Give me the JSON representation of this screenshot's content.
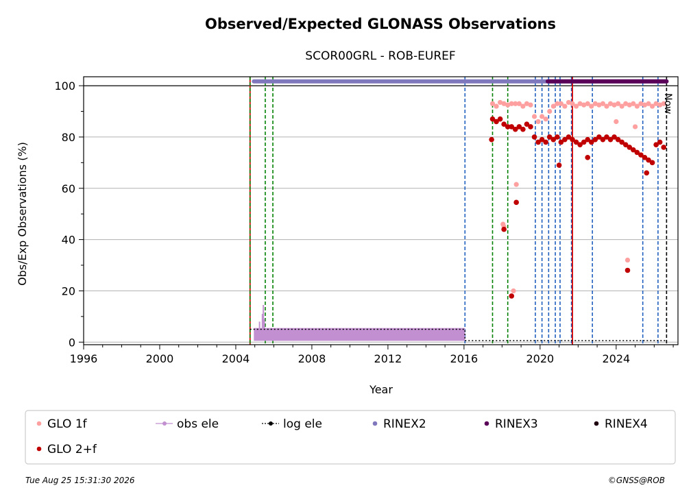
{
  "chart_data": {
    "type": "scatter",
    "title": "Observed/Expected GLONASS Observations",
    "subtitle": "SCOR00GRL - ROB-EUREF",
    "xlabel": "Year",
    "ylabel": "Obs/Exp Observations (%)",
    "xlim": [
      1996.0,
      2027.25
    ],
    "ylim": [
      -1.0,
      103.5
    ],
    "x_ticks": [
      1996,
      2000,
      2004,
      2008,
      2012,
      2016,
      2020,
      2024
    ],
    "y_ticks": [
      0,
      20,
      40,
      60,
      80,
      100
    ],
    "grid": "y",
    "now_label": "Now",
    "now_x": 2026.65,
    "reference_line_y": 100,
    "legend_position": "bottom",
    "legend": [
      {
        "label": "GLO 1f",
        "color": "#ffa0a0",
        "marker": "dot"
      },
      {
        "label": "obs ele",
        "color": "#c28fd0",
        "marker": "dot-line"
      },
      {
        "label": "log ele",
        "color": "#000000",
        "marker": "dot-dotted"
      },
      {
        "label": "RINEX2",
        "color": "#8078bc",
        "marker": "dot"
      },
      {
        "label": "RINEX3",
        "color": "#5a0058",
        "marker": "dot"
      },
      {
        "label": "RINEX4",
        "color": "#1e0010",
        "marker": "dot"
      },
      {
        "label": "GLO 2+f",
        "color": "#c00000",
        "marker": "dot"
      }
    ],
    "event_lines": {
      "red_solid": [
        2004.75,
        2021.7
      ],
      "green_dashed": [
        2004.75,
        2005.55,
        2005.95,
        2017.5,
        2018.3
      ],
      "blue_dashed": [
        2016.05,
        2019.75,
        2020.1,
        2020.45,
        2020.8,
        2021.05,
        2021.65,
        2022.75,
        2025.4,
        2026.2
      ],
      "black_dashed": [
        2026.65
      ]
    },
    "rinex_bars": [
      {
        "name": "RINEX2",
        "x_start": 2004.95,
        "x_end": 2026.65,
        "y": 101.7
      },
      {
        "name": "RINEX3",
        "x_start": 2020.4,
        "x_end": 2026.65,
        "y": 101.7
      }
    ],
    "log_ele": [
      [
        2004.75,
        5
      ],
      [
        2016.05,
        5
      ],
      [
        2016.05,
        0.6
      ],
      [
        2026.65,
        0.6
      ]
    ],
    "obs_ele": {
      "x_start": 2004.95,
      "x_end": 2016.05,
      "y_min": 0.5,
      "y_max": 5.5,
      "spikes": [
        [
          2005.25,
          8
        ],
        [
          2005.4,
          11
        ],
        [
          2005.45,
          14.5
        ],
        [
          2005.5,
          9
        ]
      ]
    },
    "series": [
      {
        "name": "GLO 1f",
        "points": [
          [
            2017.5,
            93
          ],
          [
            2017.7,
            92
          ],
          [
            2017.9,
            93.5
          ],
          [
            2018.1,
            93
          ],
          [
            2018.3,
            92.5
          ],
          [
            2018.5,
            93
          ],
          [
            2018.7,
            93
          ],
          [
            2018.9,
            93
          ],
          [
            2019.1,
            92
          ],
          [
            2019.3,
            93
          ],
          [
            2019.5,
            92.5
          ],
          [
            2019.7,
            88
          ],
          [
            2019.9,
            86
          ],
          [
            2020.1,
            88
          ],
          [
            2020.3,
            87
          ],
          [
            2020.5,
            90
          ],
          [
            2020.7,
            92
          ],
          [
            2020.9,
            93
          ],
          [
            2021.1,
            93
          ],
          [
            2021.3,
            92
          ],
          [
            2021.5,
            93.5
          ],
          [
            2021.7,
            93
          ],
          [
            2021.9,
            92
          ],
          [
            2022.1,
            93
          ],
          [
            2022.3,
            92.5
          ],
          [
            2022.5,
            93
          ],
          [
            2022.7,
            92
          ],
          [
            2022.9,
            93
          ],
          [
            2023.1,
            92.5
          ],
          [
            2023.3,
            93
          ],
          [
            2023.5,
            92
          ],
          [
            2023.7,
            93
          ],
          [
            2023.9,
            92.5
          ],
          [
            2024.1,
            93
          ],
          [
            2024.3,
            92
          ],
          [
            2024.5,
            93
          ],
          [
            2024.7,
            92.5
          ],
          [
            2024.9,
            93
          ],
          [
            2025.1,
            92
          ],
          [
            2025.3,
            93
          ],
          [
            2025.5,
            92.5
          ],
          [
            2025.7,
            93
          ],
          [
            2025.9,
            92
          ],
          [
            2026.1,
            93
          ],
          [
            2026.3,
            92.5
          ],
          [
            2026.5,
            93
          ],
          [
            2018.05,
            46
          ],
          [
            2018.1,
            45
          ],
          [
            2018.75,
            61.5
          ],
          [
            2018.6,
            20
          ],
          [
            2024.6,
            32
          ],
          [
            2025.0,
            84
          ],
          [
            2024.0,
            86
          ]
        ]
      },
      {
        "name": "GLO 2+f",
        "points": [
          [
            2017.5,
            87
          ],
          [
            2017.7,
            86
          ],
          [
            2017.9,
            87
          ],
          [
            2018.1,
            85
          ],
          [
            2018.3,
            84
          ],
          [
            2018.5,
            84
          ],
          [
            2018.7,
            83
          ],
          [
            2018.9,
            84
          ],
          [
            2019.1,
            83
          ],
          [
            2019.3,
            85
          ],
          [
            2019.5,
            84
          ],
          [
            2019.7,
            80
          ],
          [
            2019.9,
            78
          ],
          [
            2020.1,
            79
          ],
          [
            2020.3,
            78
          ],
          [
            2020.5,
            80
          ],
          [
            2020.7,
            79
          ],
          [
            2020.9,
            80
          ],
          [
            2021.1,
            78
          ],
          [
            2021.3,
            79
          ],
          [
            2021.5,
            80
          ],
          [
            2021.7,
            79
          ],
          [
            2021.9,
            78
          ],
          [
            2022.1,
            77
          ],
          [
            2022.3,
            78
          ],
          [
            2022.5,
            79
          ],
          [
            2022.7,
            78
          ],
          [
            2022.9,
            79
          ],
          [
            2023.1,
            80
          ],
          [
            2023.3,
            79
          ],
          [
            2023.5,
            80
          ],
          [
            2023.7,
            79
          ],
          [
            2023.9,
            80
          ],
          [
            2024.1,
            79
          ],
          [
            2024.3,
            78
          ],
          [
            2024.5,
            77
          ],
          [
            2024.7,
            76
          ],
          [
            2024.9,
            75
          ],
          [
            2025.1,
            74
          ],
          [
            2025.3,
            73
          ],
          [
            2025.5,
            72
          ],
          [
            2025.7,
            71
          ],
          [
            2025.9,
            70
          ],
          [
            2026.1,
            77
          ],
          [
            2026.3,
            78
          ],
          [
            2026.5,
            76
          ],
          [
            2017.45,
            79
          ],
          [
            2018.1,
            44
          ],
          [
            2018.5,
            18
          ],
          [
            2018.75,
            54.5
          ],
          [
            2024.6,
            28
          ],
          [
            2021.0,
            69
          ],
          [
            2022.5,
            72
          ],
          [
            2025.6,
            66
          ]
        ]
      }
    ]
  },
  "footer": {
    "timestamp": "Tue Aug 25 15:31:30 2026",
    "copyright": "©GNSS@ROB"
  }
}
